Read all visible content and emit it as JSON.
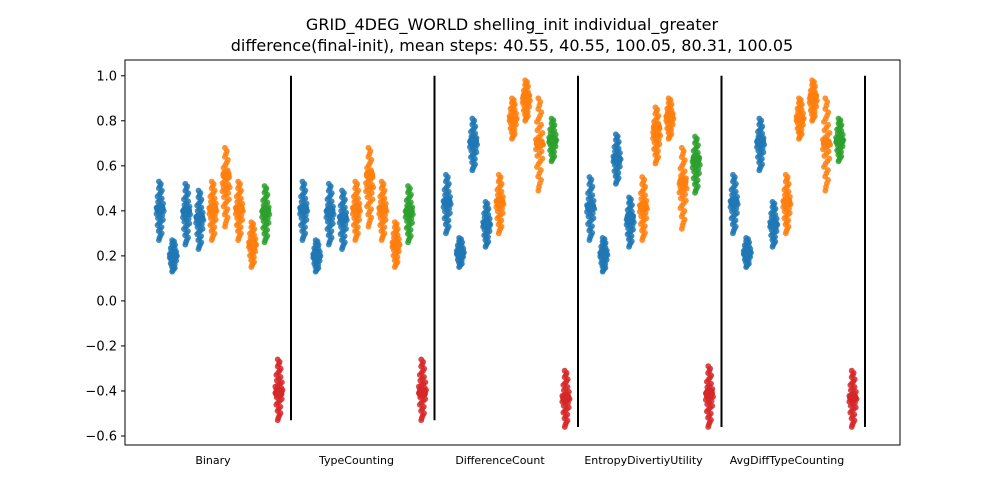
{
  "chart_data": {
    "type": "scatter",
    "title": "GRID_4DEG_WORLD shelling_init individual_greater",
    "subtitle": "difference(final-init), mean steps: 40.55, 40.55, 100.05, 80.31, 100.05",
    "xlabel": "",
    "ylabel": "",
    "ylim": [
      -0.64,
      1.07
    ],
    "yticks": [
      "−0.6",
      "−0.4",
      "−0.2",
      "0.0",
      "0.2",
      "0.4",
      "0.6",
      "0.8",
      "1.0"
    ],
    "ytick_values": [
      -0.6,
      -0.4,
      -0.2,
      0.0,
      0.2,
      0.4,
      0.6,
      0.8,
      1.0
    ],
    "grid": false,
    "categories": [
      "Binary",
      "TypeCounting",
      "DifferenceCount",
      "EntropyDivertiyUtility",
      "AvgDiffTypeCounting"
    ],
    "colors": {
      "blue": "#1f77b4",
      "orange": "#ff7f0e",
      "green": "#2ca02c",
      "red": "#d62728"
    },
    "groups": [
      {
        "label": "Binary",
        "strips": [
          {
            "color": "blue",
            "mean": 0.41,
            "min": 0.27,
            "max": 0.53
          },
          {
            "color": "blue",
            "mean": 0.2,
            "min": 0.13,
            "max": 0.27
          },
          {
            "color": "blue",
            "mean": 0.4,
            "min": 0.25,
            "max": 0.52
          },
          {
            "color": "blue",
            "mean": 0.37,
            "min": 0.23,
            "max": 0.49
          },
          {
            "color": "orange",
            "mean": 0.41,
            "min": 0.27,
            "max": 0.53
          },
          {
            "color": "orange",
            "mean": 0.56,
            "min": 0.33,
            "max": 0.68
          },
          {
            "color": "orange",
            "mean": 0.41,
            "min": 0.27,
            "max": 0.53
          },
          {
            "color": "orange",
            "mean": 0.25,
            "min": 0.15,
            "max": 0.35
          },
          {
            "color": "green",
            "mean": 0.4,
            "min": 0.26,
            "max": 0.51
          },
          {
            "color": "red",
            "mean": -0.41,
            "min": -0.53,
            "max": -0.26
          }
        ]
      },
      {
        "label": "TypeCounting",
        "strips": [
          {
            "color": "blue",
            "mean": 0.41,
            "min": 0.27,
            "max": 0.53
          },
          {
            "color": "blue",
            "mean": 0.2,
            "min": 0.13,
            "max": 0.27
          },
          {
            "color": "blue",
            "mean": 0.4,
            "min": 0.25,
            "max": 0.52
          },
          {
            "color": "blue",
            "mean": 0.37,
            "min": 0.23,
            "max": 0.49
          },
          {
            "color": "orange",
            "mean": 0.41,
            "min": 0.27,
            "max": 0.53
          },
          {
            "color": "orange",
            "mean": 0.56,
            "min": 0.33,
            "max": 0.68
          },
          {
            "color": "orange",
            "mean": 0.41,
            "min": 0.27,
            "max": 0.53
          },
          {
            "color": "orange",
            "mean": 0.25,
            "min": 0.15,
            "max": 0.35
          },
          {
            "color": "green",
            "mean": 0.4,
            "min": 0.26,
            "max": 0.51
          },
          {
            "color": "red",
            "mean": -0.41,
            "min": -0.53,
            "max": -0.26
          }
        ]
      },
      {
        "label": "DifferenceCount",
        "strips": [
          {
            "color": "blue",
            "mean": 0.44,
            "min": 0.3,
            "max": 0.56
          },
          {
            "color": "blue",
            "mean": 0.21,
            "min": 0.15,
            "max": 0.28
          },
          {
            "color": "blue",
            "mean": 0.71,
            "min": 0.58,
            "max": 0.81
          },
          {
            "color": "blue",
            "mean": 0.34,
            "min": 0.24,
            "max": 0.44
          },
          {
            "color": "orange",
            "mean": 0.44,
            "min": 0.3,
            "max": 0.56
          },
          {
            "color": "orange",
            "mean": 0.81,
            "min": 0.72,
            "max": 0.9
          },
          {
            "color": "orange",
            "mean": 0.91,
            "min": 0.8,
            "max": 0.98
          },
          {
            "color": "orange",
            "mean": 0.7,
            "min": 0.49,
            "max": 0.9
          },
          {
            "color": "green",
            "mean": 0.71,
            "min": 0.62,
            "max": 0.81
          },
          {
            "color": "red",
            "mean": -0.43,
            "min": -0.56,
            "max": -0.31
          }
        ]
      },
      {
        "label": "EntropyDivertiyUtility",
        "strips": [
          {
            "color": "blue",
            "mean": 0.42,
            "min": 0.27,
            "max": 0.55
          },
          {
            "color": "blue",
            "mean": 0.21,
            "min": 0.13,
            "max": 0.28
          },
          {
            "color": "blue",
            "mean": 0.63,
            "min": 0.52,
            "max": 0.74
          },
          {
            "color": "blue",
            "mean": 0.37,
            "min": 0.24,
            "max": 0.46
          },
          {
            "color": "orange",
            "mean": 0.42,
            "min": 0.27,
            "max": 0.55
          },
          {
            "color": "orange",
            "mean": 0.77,
            "min": 0.61,
            "max": 0.86
          },
          {
            "color": "orange",
            "mean": 0.82,
            "min": 0.72,
            "max": 0.9
          },
          {
            "color": "orange",
            "mean": 0.53,
            "min": 0.32,
            "max": 0.68
          },
          {
            "color": "green",
            "mean": 0.63,
            "min": 0.48,
            "max": 0.73
          },
          {
            "color": "red",
            "mean": -0.41,
            "min": -0.56,
            "max": -0.29
          }
        ]
      },
      {
        "label": "AvgDiffTypeCounting",
        "strips": [
          {
            "color": "blue",
            "mean": 0.44,
            "min": 0.3,
            "max": 0.56
          },
          {
            "color": "blue",
            "mean": 0.21,
            "min": 0.15,
            "max": 0.28
          },
          {
            "color": "blue",
            "mean": 0.71,
            "min": 0.58,
            "max": 0.81
          },
          {
            "color": "blue",
            "mean": 0.34,
            "min": 0.24,
            "max": 0.44
          },
          {
            "color": "orange",
            "mean": 0.44,
            "min": 0.3,
            "max": 0.56
          },
          {
            "color": "orange",
            "mean": 0.81,
            "min": 0.72,
            "max": 0.9
          },
          {
            "color": "orange",
            "mean": 0.91,
            "min": 0.8,
            "max": 0.98
          },
          {
            "color": "orange",
            "mean": 0.7,
            "min": 0.49,
            "max": 0.9
          },
          {
            "color": "green",
            "mean": 0.71,
            "min": 0.62,
            "max": 0.81
          },
          {
            "color": "red",
            "mean": -0.43,
            "min": -0.56,
            "max": -0.31
          }
        ]
      }
    ],
    "separators": [
      {
        "ymin": -0.53,
        "ymax": 1.0
      },
      {
        "ymin": -0.53,
        "ymax": 1.0
      },
      {
        "ymin": -0.56,
        "ymax": 1.0
      },
      {
        "ymin": -0.56,
        "ymax": 1.0
      },
      {
        "ymin": -0.56,
        "ymax": 1.0
      }
    ]
  }
}
